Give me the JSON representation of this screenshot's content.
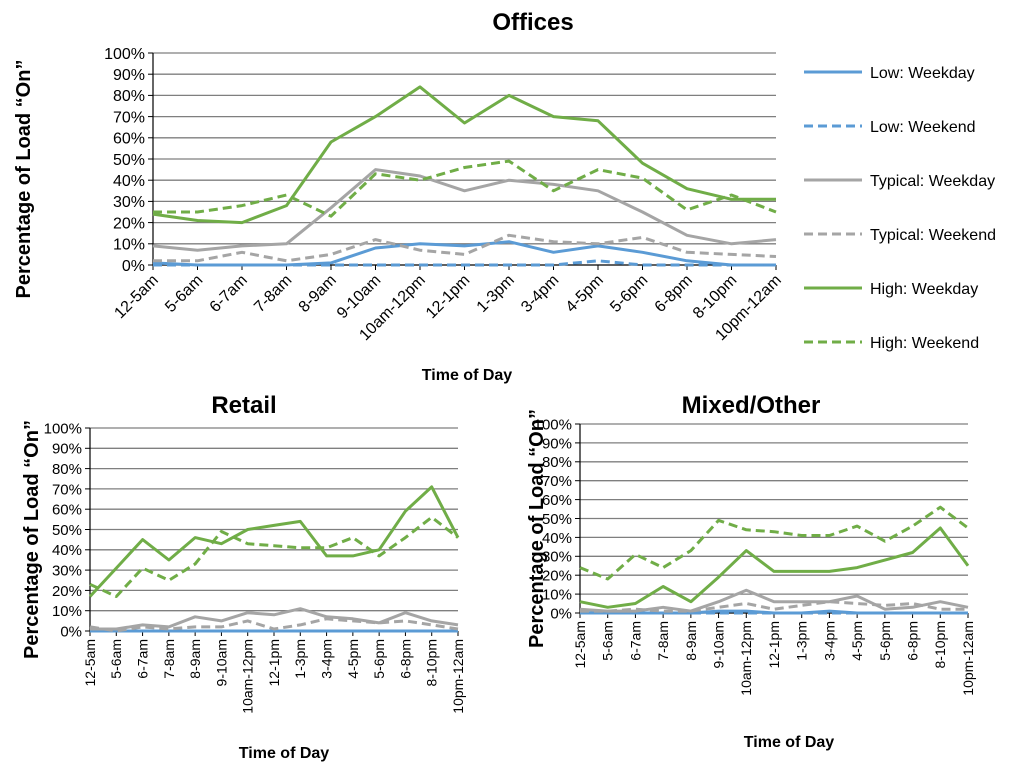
{
  "colors": {
    "low": "#5b9bd5",
    "typical": "#a5a5a5",
    "high": "#70ad47",
    "grid": "#7f7f7f",
    "axis": "#000000"
  },
  "legend": [
    {
      "label": "Low: Weekday",
      "series": "low",
      "dashed": false
    },
    {
      "label": "Low: Weekend",
      "series": "low",
      "dashed": true
    },
    {
      "label": "Typical: Weekday",
      "series": "typical",
      "dashed": false
    },
    {
      "label": "Typical: Weekend",
      "series": "typical",
      "dashed": true
    },
    {
      "label": "High: Weekday",
      "series": "high",
      "dashed": false
    },
    {
      "label": "High: Weekend",
      "series": "high",
      "dashed": true
    }
  ],
  "chart_data": [
    {
      "type": "line",
      "title": "Offices",
      "xlabel": "Time of Day",
      "ylabel": "Percentage of Load “On”",
      "ylim": [
        0,
        100
      ],
      "yticks": [
        "0%",
        "10%",
        "20%",
        "30%",
        "40%",
        "50%",
        "60%",
        "70%",
        "80%",
        "90%",
        "100%"
      ],
      "categories": [
        "12-5am",
        "5-6am",
        "6-7am",
        "7-8am",
        "8-9am",
        "9-10am",
        "10am-12pm",
        "12-1pm",
        "1-3pm",
        "3-4pm",
        "4-5pm",
        "5-6pm",
        "6-8pm",
        "8-10pm",
        "10pm-12am"
      ],
      "series": [
        {
          "name": "Low: Weekday",
          "color_key": "low",
          "dashed": false,
          "values": [
            1,
            0,
            0,
            0,
            1,
            8,
            10,
            9,
            11,
            6,
            9,
            6,
            2,
            0,
            0
          ]
        },
        {
          "name": "Low: Weekend",
          "color_key": "low",
          "dashed": true,
          "values": [
            0,
            0,
            0,
            0,
            0,
            0,
            0,
            0,
            0,
            0,
            2,
            0,
            0,
            0,
            0
          ]
        },
        {
          "name": "Typical: Weekday",
          "color_key": "typical",
          "dashed": false,
          "values": [
            9,
            7,
            9,
            10,
            27,
            45,
            42,
            35,
            40,
            38,
            35,
            25,
            14,
            10,
            12
          ]
        },
        {
          "name": "Typical: Weekend",
          "color_key": "typical",
          "dashed": true,
          "values": [
            2,
            2,
            6,
            2,
            5,
            12,
            7,
            5,
            14,
            11,
            10,
            13,
            6,
            5,
            4
          ]
        },
        {
          "name": "High: Weekday",
          "color_key": "high",
          "dashed": false,
          "values": [
            24,
            21,
            20,
            28,
            58,
            70,
            84,
            67,
            80,
            70,
            68,
            48,
            36,
            31,
            31
          ]
        },
        {
          "name": "High: Weekend",
          "color_key": "high",
          "dashed": true,
          "values": [
            25,
            25,
            28,
            33,
            23,
            43,
            40,
            46,
            49,
            35,
            45,
            41,
            26,
            33,
            25
          ]
        }
      ]
    },
    {
      "type": "line",
      "title": "Retail",
      "xlabel": "Time of Day",
      "ylabel": "Percentage of Load “On”",
      "ylim": [
        0,
        100
      ],
      "yticks": [
        "0%",
        "10%",
        "20%",
        "30%",
        "40%",
        "50%",
        "60%",
        "70%",
        "80%",
        "90%",
        "100%"
      ],
      "categories": [
        "12-5am",
        "5-6am",
        "6-7am",
        "7-8am",
        "8-9am",
        "9-10am",
        "10am-12pm",
        "12-1pm",
        "1-3pm",
        "3-4pm",
        "4-5pm",
        "5-6pm",
        "6-8pm",
        "8-10pm",
        "10pm-12am"
      ],
      "series": [
        {
          "name": "Low: Weekday",
          "color_key": "low",
          "dashed": false,
          "values": [
            0,
            0,
            0,
            0,
            0,
            0,
            0,
            0,
            0,
            0,
            0,
            0,
            0,
            0,
            0
          ]
        },
        {
          "name": "Low: Weekend",
          "color_key": "low",
          "dashed": true,
          "values": [
            0,
            0,
            0,
            0,
            0,
            0,
            0,
            0,
            0,
            0,
            0,
            0,
            0,
            0,
            0
          ]
        },
        {
          "name": "Typical: Weekday",
          "color_key": "typical",
          "dashed": false,
          "values": [
            1,
            1,
            3,
            2,
            7,
            5,
            9,
            8,
            11,
            7,
            6,
            4,
            9,
            5,
            3
          ]
        },
        {
          "name": "Typical: Weekend",
          "color_key": "typical",
          "dashed": true,
          "values": [
            2,
            0,
            2,
            1,
            2,
            2,
            5,
            1,
            3,
            6,
            5,
            4,
            5,
            3,
            1
          ]
        },
        {
          "name": "High: Weekday",
          "color_key": "high",
          "dashed": false,
          "values": [
            17,
            31,
            45,
            35,
            46,
            43,
            50,
            52,
            54,
            37,
            37,
            40,
            59,
            71,
            46
          ]
        },
        {
          "name": "High: Weekend",
          "color_key": "high",
          "dashed": true,
          "values": [
            23,
            17,
            31,
            25,
            33,
            49,
            43,
            42,
            41,
            41,
            46,
            37,
            46,
            56,
            46
          ]
        }
      ]
    },
    {
      "type": "line",
      "title": "Mixed/Other",
      "xlabel": "Time of Day",
      "ylabel": "Percentage of Load “On”",
      "ylim": [
        0,
        100
      ],
      "yticks": [
        "0%",
        "10%",
        "20%",
        "30%",
        "40%",
        "50%",
        "60%",
        "70%",
        "80%",
        "90%",
        "100%"
      ],
      "categories": [
        "12-5am",
        "5-6am",
        "6-7am",
        "7-8am",
        "8-9am",
        "9-10am",
        "10am-12pm",
        "12-1pm",
        "1-3pm",
        "3-4pm",
        "4-5pm",
        "5-6pm",
        "6-8pm",
        "8-10pm",
        "10pm-12am"
      ],
      "series": [
        {
          "name": "Low: Weekday",
          "color_key": "low",
          "dashed": false,
          "values": [
            0,
            0,
            0,
            0,
            0,
            1,
            1,
            0,
            0,
            1,
            0,
            0,
            0,
            0,
            0
          ]
        },
        {
          "name": "Low: Weekend",
          "color_key": "low",
          "dashed": true,
          "values": [
            0,
            0,
            0,
            0,
            0,
            0,
            0,
            0,
            0,
            0,
            0,
            0,
            0,
            0,
            0
          ]
        },
        {
          "name": "Typical: Weekday",
          "color_key": "typical",
          "dashed": false,
          "values": [
            2,
            1,
            1,
            3,
            1,
            6,
            12,
            6,
            6,
            6,
            9,
            2,
            3,
            6,
            3
          ]
        },
        {
          "name": "Typical: Weekend",
          "color_key": "typical",
          "dashed": true,
          "values": [
            1,
            1,
            2,
            1,
            1,
            3,
            5,
            2,
            4,
            6,
            5,
            4,
            5,
            2,
            2
          ]
        },
        {
          "name": "High: Weekday",
          "color_key": "high",
          "dashed": false,
          "values": [
            6,
            3,
            5,
            14,
            6,
            19,
            33,
            22,
            22,
            22,
            24,
            28,
            32,
            45,
            25
          ]
        },
        {
          "name": "High: Weekend",
          "color_key": "high",
          "dashed": true,
          "values": [
            24,
            18,
            31,
            24,
            33,
            49,
            44,
            43,
            41,
            41,
            46,
            38,
            46,
            56,
            45
          ]
        }
      ]
    }
  ]
}
